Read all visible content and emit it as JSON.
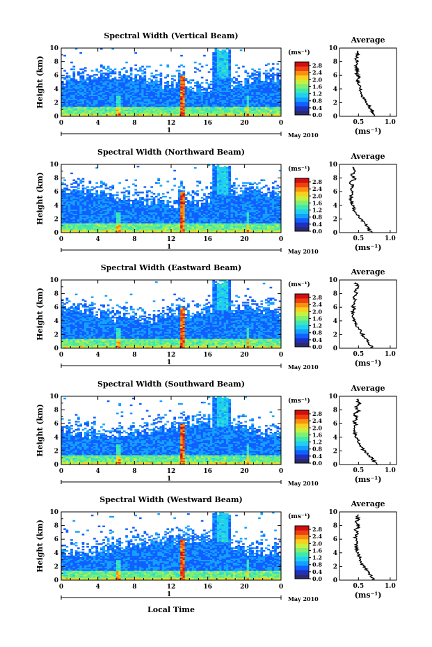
{
  "chart_data": {
    "type": "heatmap",
    "panels": [
      {
        "title": "Spectral Width (Vertical Beam)",
        "avg_profile": [
          0.78,
          0.72,
          0.7,
          0.66,
          0.62,
          0.58,
          0.55,
          0.53,
          0.52,
          0.5,
          0.48,
          0.5,
          0.47,
          0.49,
          0.45,
          0.48,
          0.46,
          0.49,
          0.47,
          0.5
        ]
      },
      {
        "title": "Spectral Width (Northward Beam)",
        "avg_profile": [
          0.7,
          0.66,
          0.62,
          0.58,
          0.52,
          0.48,
          0.44,
          0.42,
          0.4,
          0.38,
          0.38,
          0.4,
          0.37,
          0.42,
          0.36,
          0.45,
          0.38,
          0.46,
          0.4,
          0.44
        ]
      },
      {
        "title": "Spectral Width (Eastward Beam)",
        "avg_profile": [
          0.72,
          0.68,
          0.64,
          0.6,
          0.56,
          0.52,
          0.48,
          0.44,
          0.42,
          0.42,
          0.4,
          0.44,
          0.4,
          0.46,
          0.42,
          0.48,
          0.44,
          0.5,
          0.46,
          0.48
        ]
      },
      {
        "title": "Spectral Width (Southward Beam)",
        "avg_profile": [
          0.8,
          0.74,
          0.7,
          0.64,
          0.58,
          0.54,
          0.5,
          0.48,
          0.46,
          0.44,
          0.44,
          0.46,
          0.42,
          0.48,
          0.44,
          0.5,
          0.46,
          0.52,
          0.48,
          0.5
        ]
      },
      {
        "title": "Spectral Width (Westward Beam)",
        "avg_profile": [
          0.74,
          0.7,
          0.66,
          0.62,
          0.58,
          0.54,
          0.52,
          0.5,
          0.48,
          0.46,
          0.46,
          0.48,
          0.44,
          0.5,
          0.44,
          0.52,
          0.46,
          0.5,
          0.48,
          0.5
        ]
      }
    ],
    "x_ticks": [
      "0",
      "4",
      "8",
      "12",
      "16",
      "20",
      "0"
    ],
    "xlim": [
      0,
      24
    ],
    "y_ticks": [
      "0",
      "2",
      "4",
      "6",
      "8",
      "10"
    ],
    "ylim": [
      0,
      10
    ],
    "ylabel": "Height (km)",
    "xlabel": "Local Time",
    "day_label": "1",
    "date_label": "May 2010",
    "colorbar_unit": "(ms⁻¹)",
    "colorbar_ticks": [
      "2.8",
      "2.4",
      "2.0",
      "1.6",
      "1.2",
      "0.8",
      "0.4",
      "0.0"
    ],
    "colorbar_range": [
      0,
      3.0
    ],
    "colorbar_colors": [
      "#2b2b6b",
      "#1f2fbf",
      "#1060ff",
      "#15a0ff",
      "#20d0f0",
      "#40e8b0",
      "#80f070",
      "#c8f040",
      "#f8d020",
      "#f89010",
      "#f04010",
      "#d01010"
    ],
    "avg_title": "Average",
    "avg_xticks": [
      "0.5",
      "1.0"
    ],
    "avg_xlim": [
      0.2,
      1.1
    ],
    "avg_xlabel": "(ms⁻¹)",
    "grid": false
  }
}
